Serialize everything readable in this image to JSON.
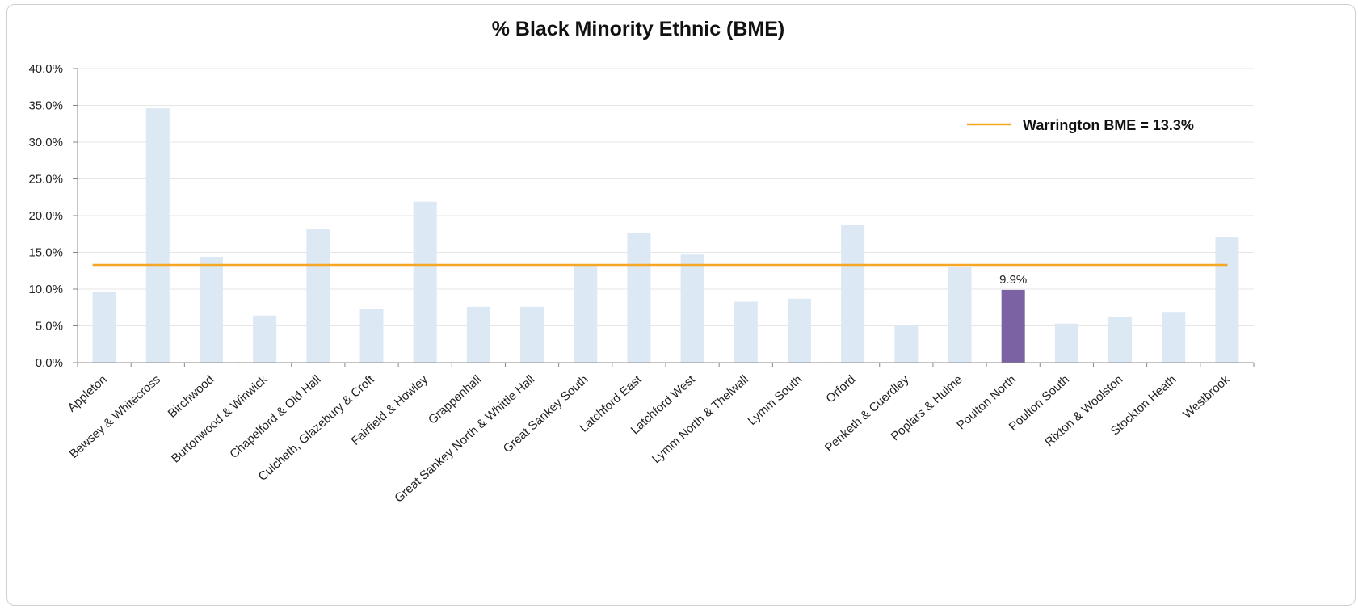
{
  "chart_data": {
    "type": "bar",
    "title": "% Black Minority Ethnic (BME)",
    "xlabel": "",
    "ylabel": "",
    "ylim": [
      0,
      40
    ],
    "y_ticks": [
      "0.0%",
      "5.0%",
      "10.0%",
      "15.0%",
      "20.0%",
      "25.0%",
      "30.0%",
      "35.0%",
      "40.0%"
    ],
    "grid": true,
    "legend_position": "top-right",
    "categories": [
      "Appleton",
      "Bewsey & Whitecross",
      "Birchwood",
      "Burtonwood & Winwick",
      "Chapelford & Old Hall",
      "Culcheth, Glazebury & Croft",
      "Fairfield & Howley",
      "Grappenhall",
      "Great Sankey North & Whittle Hall",
      "Great Sankey South",
      "Latchford East",
      "Latchford West",
      "Lymm North & Thelwall",
      "Lymm South",
      "Orford",
      "Penketh & Cuerdley",
      "Poplars & Hulme",
      "Poulton North",
      "Poulton South",
      "Rixton & Woolston",
      "Stockton Heath",
      "Westbrook"
    ],
    "values": [
      9.6,
      34.6,
      14.4,
      6.4,
      18.2,
      7.3,
      21.9,
      7.6,
      7.6,
      13.2,
      17.6,
      14.7,
      8.3,
      8.7,
      18.7,
      5.1,
      13.0,
      9.9,
      5.3,
      6.2,
      6.9,
      17.1
    ],
    "highlight_index": 17,
    "highlight_label": "9.9%",
    "reference_line": {
      "value": 13.3,
      "label": "Warrington BME = 13.3%"
    },
    "colors": {
      "bar": "#dce8f4",
      "highlight": "#7a62a3",
      "reference": "#f5a623",
      "axis": "#888888",
      "grid": "#e6e6e6"
    }
  }
}
